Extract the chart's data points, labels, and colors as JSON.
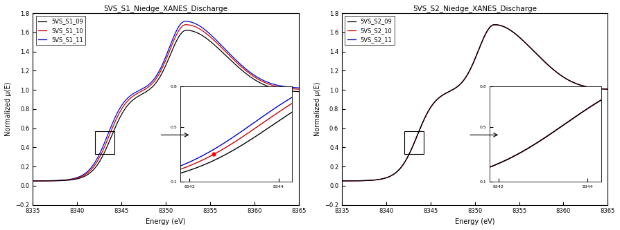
{
  "left_title": "5VS_S1_Niedge_XANES_Discharge",
  "right_title": "5VS_S2_Niedge_XANES_Discharge",
  "xlabel": "Energy (eV)",
  "ylabel": "Normalized μ(E)",
  "xmin": 8335,
  "xmax": 8365,
  "ymin": -0.2,
  "ymax": 1.8,
  "xticks": [
    8335,
    8340,
    8345,
    8350,
    8355,
    8360,
    8365
  ],
  "yticks": [
    -0.2,
    0.0,
    0.2,
    0.4,
    0.6,
    0.8,
    1.0,
    1.2,
    1.4,
    1.6,
    1.8
  ],
  "left_legend": [
    "5VS_S1_09",
    "5VS_S1_10",
    "5VS_S1_11"
  ],
  "right_legend": [
    "5VS_S2_09",
    "5VS_S2_10",
    "5VS_S2_11"
  ],
  "line_colors": [
    "#000000",
    "#cc0000",
    "#0000cc"
  ],
  "bg_color": "#ffffff",
  "title_fontsize": 7.5,
  "label_fontsize": 7,
  "tick_fontsize": 6,
  "legend_fontsize": 6
}
